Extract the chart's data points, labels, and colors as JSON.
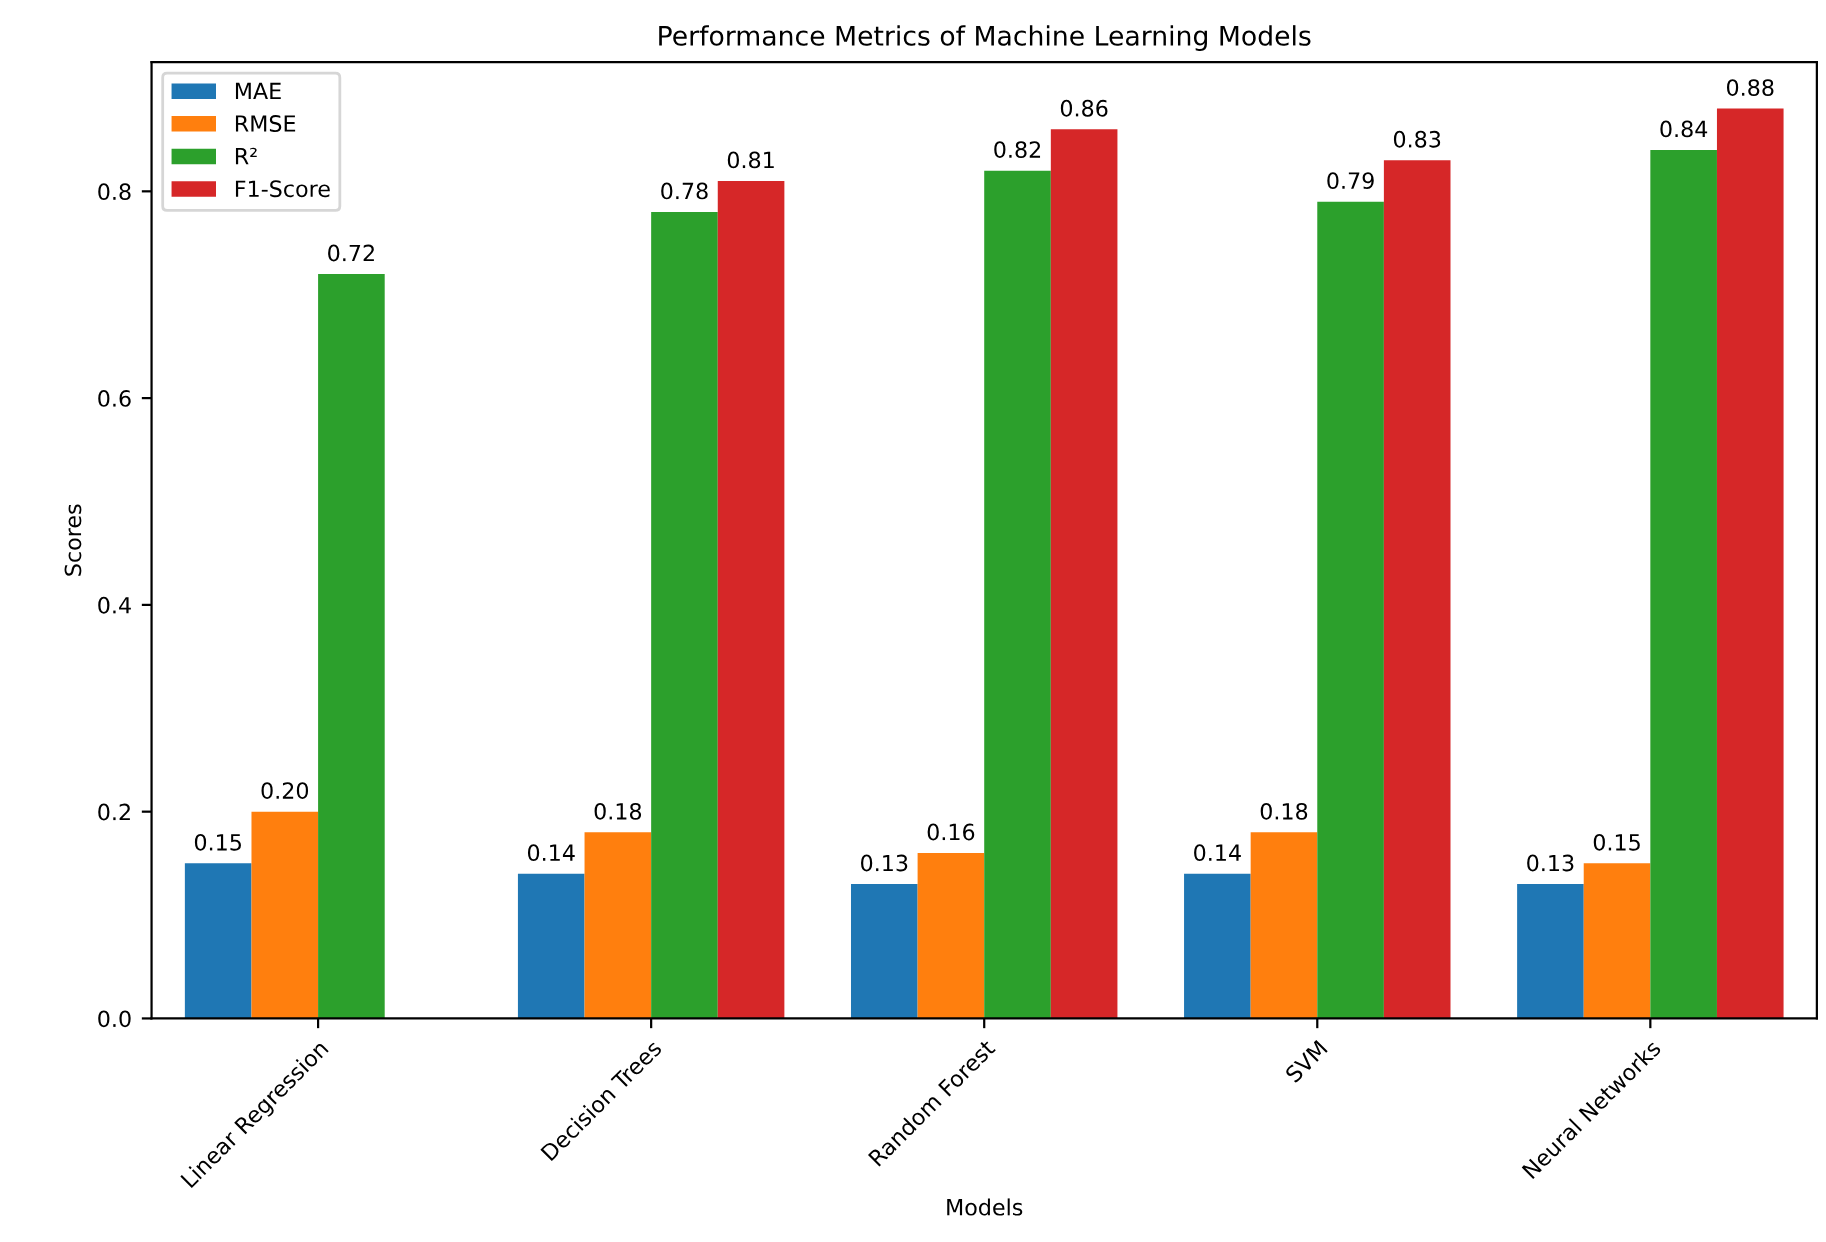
{
  "chart_data": {
    "type": "bar",
    "title": "Performance Metrics of Machine Learning Models",
    "xlabel": "Models",
    "ylabel": "Scores",
    "categories": [
      "Linear Regression",
      "Decision Trees",
      "Random Forest",
      "SVM",
      "Neural Networks"
    ],
    "series": [
      {
        "name": "MAE",
        "color": "#1f77b4",
        "values": [
          0.15,
          0.14,
          0.13,
          0.14,
          0.13
        ],
        "value_labels": [
          "0.15",
          "0.14",
          "0.13",
          "0.14",
          "0.13"
        ]
      },
      {
        "name": "RMSE",
        "color": "#ff7f0e",
        "values": [
          0.2,
          0.18,
          0.16,
          0.18,
          0.15
        ],
        "value_labels": [
          "0.20",
          "0.18",
          "0.16",
          "0.18",
          "0.15"
        ]
      },
      {
        "name": "R²",
        "color": "#2ca02c",
        "values": [
          0.72,
          0.78,
          0.82,
          0.79,
          0.84
        ],
        "value_labels": [
          "0.72",
          "0.78",
          "0.82",
          "0.79",
          "0.84"
        ]
      },
      {
        "name": "F1-Score",
        "color": "#d62728",
        "values": [
          null,
          0.81,
          0.86,
          0.83,
          0.88
        ],
        "value_labels": [
          null,
          "0.81",
          "0.86",
          "0.83",
          "0.88"
        ]
      }
    ],
    "ylim": [
      0,
      0.925
    ],
    "yticks": [
      {
        "value": 0,
        "label": "0.0"
      },
      {
        "value": 0.2,
        "label": "0.2"
      },
      {
        "value": 0.4,
        "label": "0.4"
      },
      {
        "value": 0.6,
        "label": "0.6"
      },
      {
        "value": 0.8,
        "label": "0.8"
      }
    ],
    "legend": "top left",
    "grid": false
  }
}
